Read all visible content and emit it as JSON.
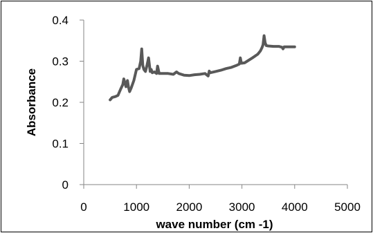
{
  "chart_data": {
    "type": "line",
    "title": "",
    "xlabel": "wave number (cm -1)",
    "ylabel": "Absorbance",
    "xlim": [
      0,
      5000
    ],
    "ylim": [
      0,
      0.4
    ],
    "xticks": [
      0,
      1000,
      2000,
      3000,
      4000,
      5000
    ],
    "yticks": [
      0,
      0.1,
      0.2,
      0.3,
      0.4
    ],
    "xtick_labels": [
      "0",
      "1000",
      "2000",
      "3000",
      "4000",
      "5000"
    ],
    "ytick_labels": [
      "0",
      "0.1",
      "0.2",
      "0.3",
      "0.4"
    ],
    "grid": false,
    "legend": "none",
    "colors": {
      "line": "#595959",
      "axis": "#868686",
      "border": "#000000"
    },
    "series": [
      {
        "x": [
          500,
          540,
          600,
          650,
          700,
          740,
          760,
          780,
          800,
          830,
          850,
          870,
          900,
          950,
          1000,
          1050,
          1080,
          1100,
          1120,
          1140,
          1170,
          1200,
          1230,
          1260,
          1280,
          1300,
          1340,
          1380,
          1400,
          1430,
          1500,
          1600,
          1700,
          1760,
          1800,
          1900,
          2000,
          2100,
          2200,
          2300,
          2360,
          2380,
          2400,
          2500,
          2600,
          2700,
          2800,
          2900,
          2950,
          2970,
          2990,
          3050,
          3100,
          3200,
          3300,
          3350,
          3380,
          3400,
          3420,
          3440,
          3460,
          3500,
          3600,
          3700,
          3760,
          3780,
          3800,
          3900,
          4000
        ],
        "y": [
          0.206,
          0.212,
          0.214,
          0.217,
          0.232,
          0.243,
          0.257,
          0.248,
          0.238,
          0.253,
          0.236,
          0.226,
          0.235,
          0.253,
          0.28,
          0.282,
          0.3,
          0.33,
          0.29,
          0.28,
          0.275,
          0.29,
          0.308,
          0.275,
          0.28,
          0.272,
          0.274,
          0.27,
          0.288,
          0.27,
          0.27,
          0.27,
          0.268,
          0.274,
          0.27,
          0.266,
          0.265,
          0.267,
          0.268,
          0.27,
          0.264,
          0.276,
          0.272,
          0.275,
          0.278,
          0.282,
          0.285,
          0.29,
          0.293,
          0.308,
          0.295,
          0.296,
          0.3,
          0.308,
          0.317,
          0.325,
          0.333,
          0.34,
          0.362,
          0.345,
          0.338,
          0.337,
          0.336,
          0.336,
          0.334,
          0.33,
          0.335,
          0.335,
          0.335
        ]
      }
    ]
  }
}
